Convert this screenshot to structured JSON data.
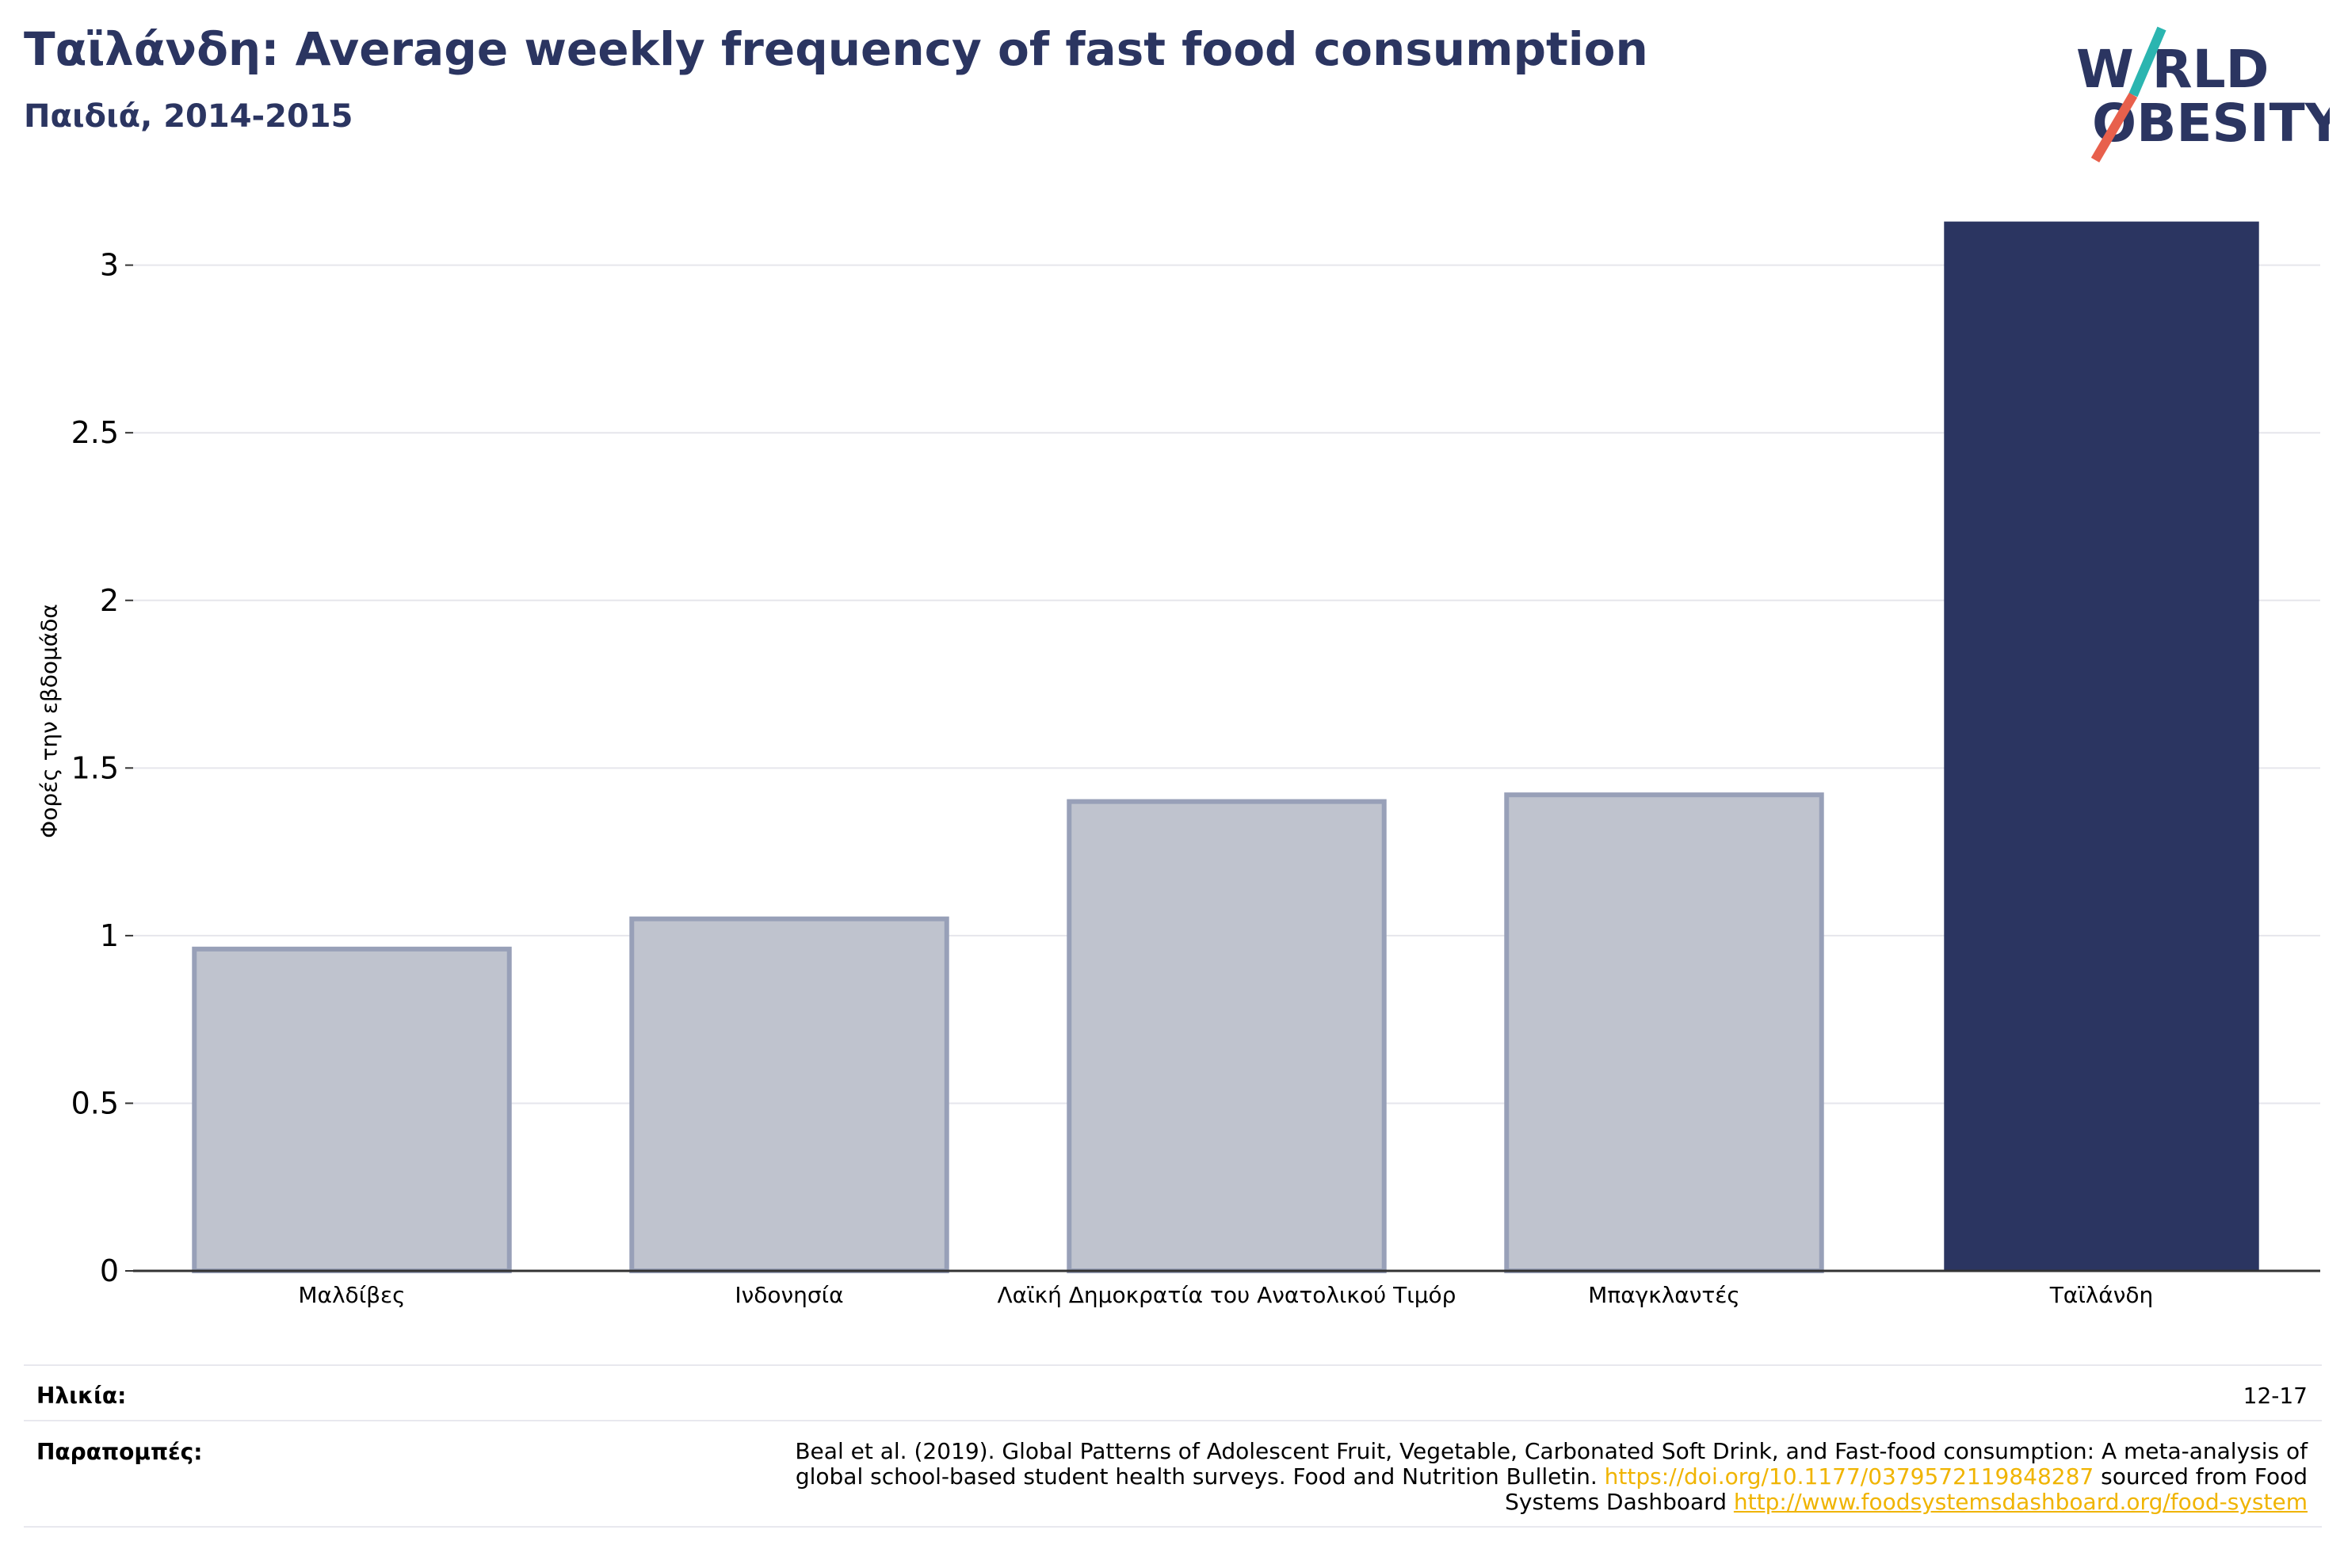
{
  "title": "Ταϊλάνδη: Average weekly frequency of fast food consumption",
  "subtitle": "Παιδιά, 2014-2015",
  "logo": {
    "line1": "W RLD",
    "line2": "OBESITY",
    "text_color": "#2b3561",
    "slash_top": "#2bb5b0",
    "slash_bottom": "#e8604c"
  },
  "chart_data": {
    "type": "bar",
    "ylabel": "Φορές την εβδομάδα",
    "xlabel": "",
    "ylim": [
      0,
      3.2
    ],
    "yticks": [
      0,
      0.5,
      1,
      1.5,
      2,
      2.5,
      3
    ],
    "ytick_labels": [
      "0",
      "0.5",
      "1",
      "1.5",
      "2",
      "2.5",
      "3"
    ],
    "grid": true,
    "categories": [
      "Μαλδίβες",
      "Ινδονησία",
      "Λαϊκή Δημοκρατία του Ανατολικού Τιμόρ",
      "Μπαγκλαντές",
      "Ταϊλάνδη"
    ],
    "values": [
      0.96,
      1.05,
      1.4,
      1.42,
      3.13
    ],
    "highlight_index": 4,
    "colors": {
      "highlight": "#2b3561",
      "other": "#bfc3ce",
      "other_edge": "#98a0b8",
      "grid": "#e6e6ec",
      "axis": "#333333"
    }
  },
  "footer": {
    "age_label": "Ηλικία:",
    "age_value": "12-17",
    "refs_label": "Παραπομπές:",
    "ref_text_1": "Beal et al. (2019). Global Patterns of Adolescent Fruit, Vegetable, Carbonated Soft Drink, and Fast-food consumption: A meta-analysis of global school-based student health surveys. Food and Nutrition Bulletin. ",
    "ref_link_1": "https://doi.org/10.1177/0379572119848287",
    "ref_text_2": " sourced from Food Systems Dashboard ",
    "ref_link_2": "http://www.foodsystemsdashboard.org/food-system"
  }
}
